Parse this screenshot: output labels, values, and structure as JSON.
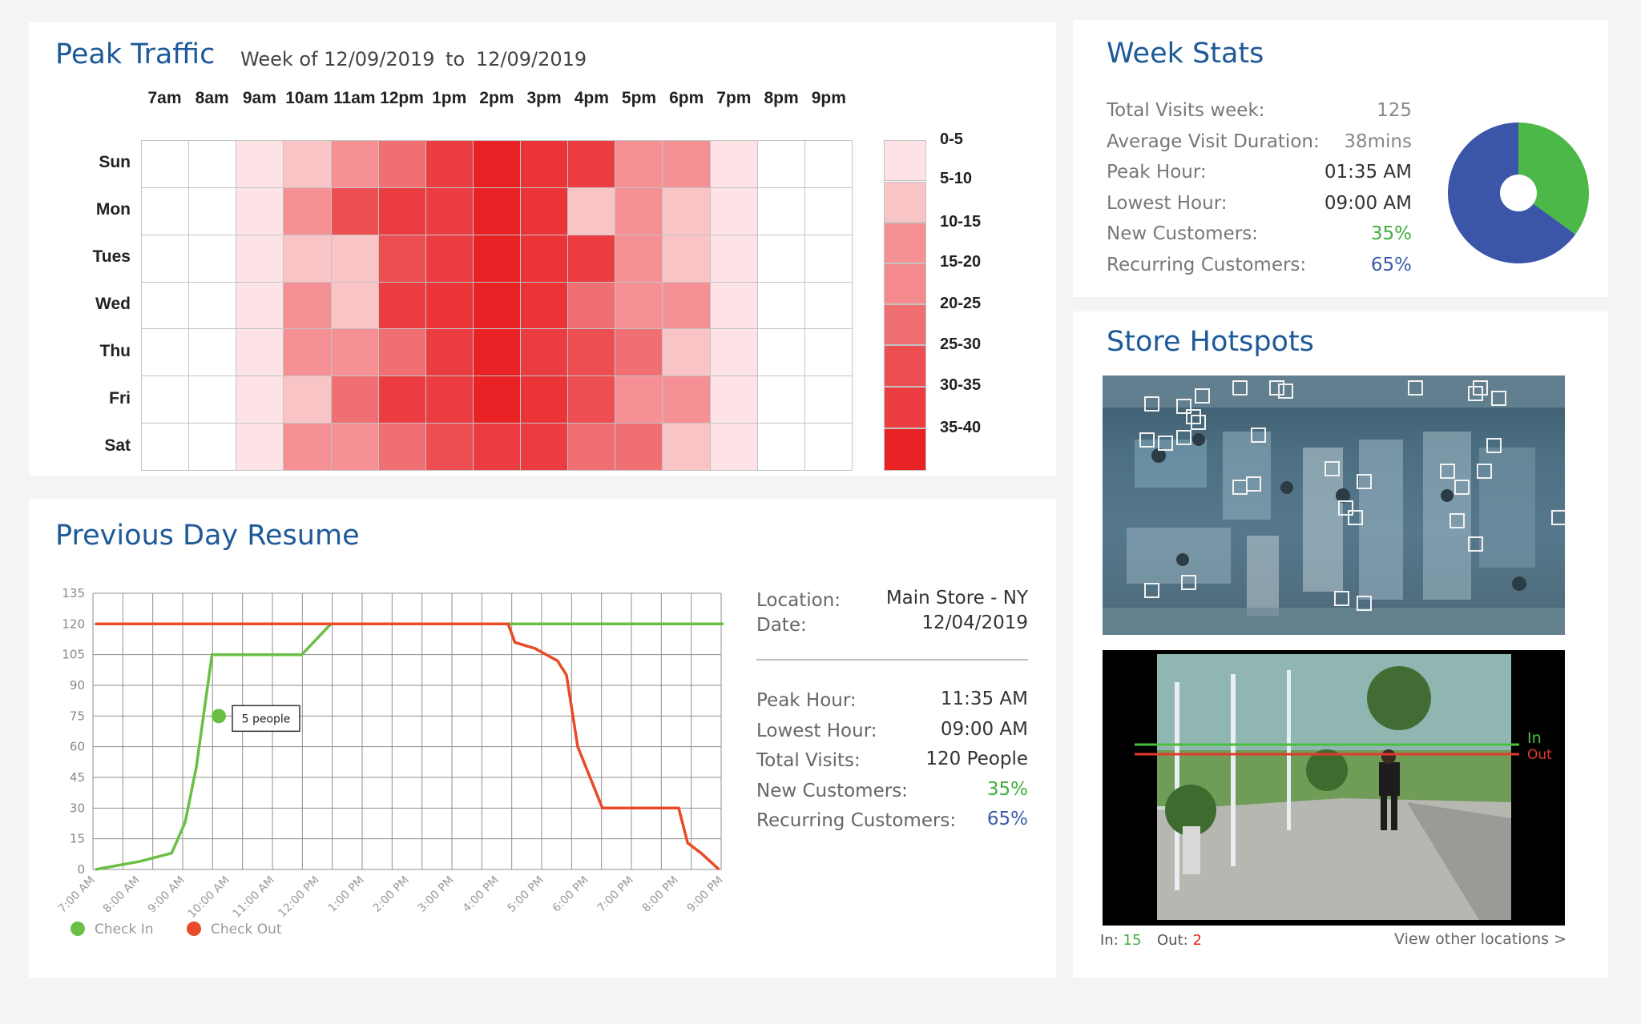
{
  "peak_traffic": {
    "title": "Peak Traffic",
    "week_prefix": "Week of",
    "date_from": "12/09/2019",
    "to_label": "to",
    "date_to": "12/09/2019",
    "hours": [
      "7am",
      "8am",
      "9am",
      "10am",
      "11am",
      "12pm",
      "1pm",
      "2pm",
      "3pm",
      "4pm",
      "5pm",
      "6pm",
      "7pm",
      "8pm",
      "9pm"
    ],
    "days": [
      "Sun",
      "Mon",
      "Tues",
      "Wed",
      "Thu",
      "Fri",
      "Sat"
    ],
    "levels": [
      [
        0,
        0,
        1,
        2,
        3,
        4,
        6,
        8,
        7,
        6,
        3,
        3,
        1,
        0,
        0
      ],
      [
        0,
        0,
        1,
        3,
        5,
        6,
        6,
        8,
        7,
        2,
        3,
        2,
        1,
        0,
        0
      ],
      [
        0,
        0,
        1,
        2,
        2,
        5,
        6,
        8,
        7,
        6,
        3,
        2,
        1,
        0,
        0
      ],
      [
        0,
        0,
        1,
        3,
        2,
        6,
        7,
        8,
        7,
        4,
        3,
        3,
        1,
        0,
        0
      ],
      [
        0,
        0,
        1,
        3,
        3,
        4,
        6,
        8,
        6,
        5,
        4,
        2,
        1,
        0,
        0
      ],
      [
        0,
        0,
        1,
        2,
        4,
        6,
        6,
        8,
        7,
        5,
        3,
        3,
        1,
        0,
        0
      ],
      [
        0,
        0,
        1,
        3,
        3,
        4,
        5,
        6,
        6,
        4,
        4,
        2,
        1,
        0,
        0
      ]
    ],
    "level_colors": [
      "#ffffff",
      "#fde3e5",
      "#f9c4c6",
      "#f59195",
      "#f06f72",
      "#ed4e52",
      "#eb3d41",
      "#ea3438",
      "#e82225"
    ],
    "legend": [
      "0-5",
      "5-10",
      "10-15",
      "15-20",
      "20-25",
      "25-30",
      "30-35",
      "35-40"
    ],
    "legend_colors": [
      "#fde3e5",
      "#f9c4c6",
      "#f59195",
      "#f48a8e",
      "#f06f72",
      "#ed4e52",
      "#eb3d41",
      "#e82225"
    ]
  },
  "week_stats": {
    "title": "Week Stats",
    "rows": [
      {
        "label": "Total Visits week:",
        "value": "125",
        "color": "#888"
      },
      {
        "label": "Average Visit Duration:",
        "value": "38mins",
        "color": "#888"
      },
      {
        "label": "Peak Hour:",
        "value": "01:35 AM",
        "color": "#333"
      },
      {
        "label": "Lowest Hour:",
        "value": "09:00 AM",
        "color": "#333"
      },
      {
        "label": "New Customers:",
        "value": "35%",
        "color": "#3fae3f"
      },
      {
        "label": "Recurring Customers:",
        "value": "65%",
        "color": "#3b5ba8"
      }
    ],
    "pie": {
      "slices": [
        {
          "value": 35,
          "color": "#4cb848"
        },
        {
          "value": 65,
          "color": "#3b56a8"
        }
      ]
    }
  },
  "resume": {
    "title": "Previous Day Resume",
    "location_label": "Location:",
    "location_value": "Main Store - NY",
    "date_label": "Date:",
    "date_value": "12/04/2019",
    "rows": [
      {
        "label": "Peak Hour:",
        "value": "11:35 AM",
        "color": "#333"
      },
      {
        "label": "Lowest Hour:",
        "value": "09:00 AM",
        "color": "#333"
      },
      {
        "label": "Total Visits:",
        "value": "120 People",
        "color": "#333"
      },
      {
        "label": "New Customers:",
        "value": "35%",
        "color": "#3fae3f"
      },
      {
        "label": "Recurring Customers:",
        "value": "65%",
        "color": "#3b5ba8"
      }
    ]
  },
  "chart_data": {
    "type": "line",
    "x": [
      "7:00 AM",
      "8:00 AM",
      "9:00 AM",
      "10:00 AM",
      "11:00 AM",
      "12:00 PM",
      "1:00 PM",
      "2:00 PM",
      "3:00 PM",
      "4:00 PM",
      "5:00 PM",
      "6:00 PM",
      "7:00 PM",
      "8:00 PM",
      "9:00 PM"
    ],
    "ylim": [
      0,
      135
    ],
    "yticks": [
      0,
      15,
      30,
      45,
      60,
      75,
      90,
      105,
      120,
      135
    ],
    "grid": true,
    "series": [
      {
        "name": "Check In",
        "color": "#6bbf45",
        "points": [
          [
            0,
            0
          ],
          [
            1,
            4
          ],
          [
            1.7,
            8
          ],
          [
            2,
            23
          ],
          [
            2.25,
            50
          ],
          [
            2.6,
            105
          ],
          [
            3,
            105
          ],
          [
            4.6,
            105
          ],
          [
            5.25,
            120
          ],
          [
            14,
            120
          ]
        ]
      },
      {
        "name": "Check Out",
        "color": "#e84b27",
        "points": [
          [
            0,
            120
          ],
          [
            9.2,
            120
          ],
          [
            9.35,
            111
          ],
          [
            9.8,
            108
          ],
          [
            10.3,
            102
          ],
          [
            10.5,
            95
          ],
          [
            10.75,
            60
          ],
          [
            11.3,
            30
          ],
          [
            13,
            30
          ],
          [
            13.2,
            13
          ],
          [
            13.5,
            8
          ],
          [
            13.9,
            0
          ]
        ]
      }
    ],
    "annotation": {
      "x": 2.75,
      "y": 75,
      "text": "5 people"
    },
    "legend_position": "bottom-left"
  },
  "hotspots": {
    "title": "Store Hotspots",
    "boxes": [
      [
        0.09,
        0.08
      ],
      [
        0.16,
        0.09
      ],
      [
        0.18,
        0.13
      ],
      [
        0.2,
        0.05
      ],
      [
        0.19,
        0.15
      ],
      [
        0.28,
        0.02
      ],
      [
        0.36,
        0.02
      ],
      [
        0.38,
        0.03
      ],
      [
        0.66,
        0.02
      ],
      [
        0.79,
        0.04
      ],
      [
        0.8,
        0.02
      ],
      [
        0.84,
        0.06
      ],
      [
        0.83,
        0.24
      ],
      [
        0.12,
        0.23
      ],
      [
        0.08,
        0.22
      ],
      [
        0.16,
        0.21
      ],
      [
        0.32,
        0.2
      ],
      [
        0.48,
        0.33
      ],
      [
        0.55,
        0.38
      ],
      [
        0.28,
        0.4
      ],
      [
        0.31,
        0.39
      ],
      [
        0.73,
        0.34
      ],
      [
        0.76,
        0.4
      ],
      [
        0.81,
        0.34
      ],
      [
        0.51,
        0.48
      ],
      [
        0.53,
        0.52
      ],
      [
        0.75,
        0.53
      ],
      [
        0.97,
        0.52
      ],
      [
        0.79,
        0.62
      ],
      [
        0.09,
        0.8
      ],
      [
        0.17,
        0.77
      ],
      [
        0.5,
        0.83
      ],
      [
        0.55,
        0.85
      ]
    ],
    "line_in_label": "In",
    "line_out_label": "Out",
    "in_label": "In:",
    "in_value": "15",
    "out_label": "Out:",
    "out_value": "2",
    "view_other": "View other locations >"
  }
}
